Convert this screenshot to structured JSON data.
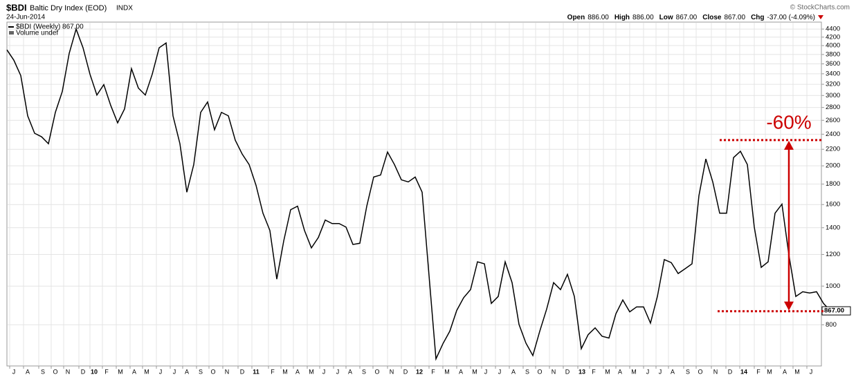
{
  "chart_data": {
    "type": "line",
    "symbol": "$BDI",
    "title": "Baltic Dry Index (EOD)",
    "exchange": "INDX",
    "date": "24-Jun-2014",
    "source": "© StockCharts.com",
    "quote": [
      {
        "label": "Open",
        "value": "886.00"
      },
      {
        "label": "High",
        "value": "886.00"
      },
      {
        "label": "Low",
        "value": "867.00"
      },
      {
        "label": "Close",
        "value": "867.00"
      },
      {
        "label": "Chg",
        "value": "-37.00 (-4.09%)"
      }
    ],
    "legend": [
      "$BDI (Weekly) 867.00",
      "Volume undef"
    ],
    "color": "#000000",
    "log_scale": true,
    "grid": true,
    "values": [
      3903,
      3677,
      3365,
      2668,
      2413,
      2365,
      2272,
      2722,
      3069,
      3825,
      4400,
      3950,
      3392,
      3008,
      3194,
      2833,
      2563,
      2777,
      3501,
      3130,
      3008,
      3392,
      3950,
      4060,
      2668,
      2272,
      1718,
      2015,
      2722,
      2890,
      2462,
      2722,
      2668,
      2318,
      2140,
      2015,
      1787,
      1522,
      1378,
      1041,
      1297,
      1553,
      1585,
      1378,
      1246,
      1323,
      1463,
      1434,
      1434,
      1405,
      1271,
      1280,
      1585,
      1875,
      1897,
      2166,
      2015,
      1845,
      1823,
      1875,
      1718,
      1062,
      657,
      717,
      771,
      869,
      935,
      980,
      1150,
      1137,
      905,
      942,
      1150,
      1020,
      802,
      720,
      670,
      771,
      876,
      1020,
      980,
      1070,
      942,
      697,
      756,
      786,
      749,
      741,
      852,
      923,
      862,
      887,
      887,
      808,
      942,
      1165,
      1145,
      1075,
      1105,
      1137,
      1683,
      2081,
      1823,
      1522,
      1522,
      2097,
      2175,
      2015,
      1405,
      1114,
      1150,
      1522,
      1604,
      1197,
      942,
      968,
      961,
      968,
      905,
      867
    ],
    "last_label": {
      "value": 867,
      "label": "867.00"
    },
    "xlim": [
      0,
      117
    ],
    "ylim": [
      631,
      4580
    ],
    "yticks": [
      800,
      1000,
      1200,
      1400,
      1600,
      1800,
      2000,
      2200,
      2400,
      2600,
      2800,
      3000,
      3200,
      3400,
      3600,
      3800,
      4000,
      4200,
      4400
    ],
    "xticks": [
      {
        "value": 0.4,
        "label": "J"
      },
      {
        "value": 2.4,
        "label": "A"
      },
      {
        "value": 4.6,
        "label": "S"
      },
      {
        "value": 6.4,
        "label": "O"
      },
      {
        "value": 8.2,
        "label": "N"
      },
      {
        "value": 10.4,
        "label": "D"
      },
      {
        "value": 12,
        "label": "10"
      },
      {
        "value": 13.8,
        "label": "F"
      },
      {
        "value": 15.8,
        "label": "M"
      },
      {
        "value": 17.8,
        "label": "A"
      },
      {
        "value": 19.6,
        "label": "M"
      },
      {
        "value": 21.6,
        "label": "J"
      },
      {
        "value": 23.6,
        "label": "J"
      },
      {
        "value": 25.4,
        "label": "A"
      },
      {
        "value": 27.4,
        "label": "S"
      },
      {
        "value": 29.2,
        "label": "O"
      },
      {
        "value": 31.2,
        "label": "N"
      },
      {
        "value": 33.4,
        "label": "D"
      },
      {
        "value": 35.4,
        "label": "11"
      },
      {
        "value": 37.8,
        "label": "F"
      },
      {
        "value": 39.6,
        "label": "M"
      },
      {
        "value": 41.4,
        "label": "A"
      },
      {
        "value": 43.4,
        "label": "M"
      },
      {
        "value": 45.2,
        "label": "J"
      },
      {
        "value": 47.2,
        "label": "J"
      },
      {
        "value": 49,
        "label": "A"
      },
      {
        "value": 51,
        "label": "S"
      },
      {
        "value": 52.9,
        "label": "O"
      },
      {
        "value": 55,
        "label": "N"
      },
      {
        "value": 57,
        "label": "D"
      },
      {
        "value": 59,
        "label": "12"
      },
      {
        "value": 61,
        "label": "F"
      },
      {
        "value": 63,
        "label": "M"
      },
      {
        "value": 65,
        "label": "A"
      },
      {
        "value": 67,
        "label": "M"
      },
      {
        "value": 68.6,
        "label": "J"
      },
      {
        "value": 70.6,
        "label": "J"
      },
      {
        "value": 72.6,
        "label": "A"
      },
      {
        "value": 74.6,
        "label": "S"
      },
      {
        "value": 76.4,
        "label": "O"
      },
      {
        "value": 78.4,
        "label": "N"
      },
      {
        "value": 80.4,
        "label": "D"
      },
      {
        "value": 82.5,
        "label": "13"
      },
      {
        "value": 84.2,
        "label": "F"
      },
      {
        "value": 86.2,
        "label": "M"
      },
      {
        "value": 88,
        "label": "A"
      },
      {
        "value": 90,
        "label": "M"
      },
      {
        "value": 92,
        "label": "J"
      },
      {
        "value": 93.8,
        "label": "J"
      },
      {
        "value": 95.6,
        "label": "A"
      },
      {
        "value": 97.8,
        "label": "S"
      },
      {
        "value": 99.6,
        "label": "O"
      },
      {
        "value": 101.8,
        "label": "N"
      },
      {
        "value": 103.9,
        "label": "D"
      },
      {
        "value": 105.9,
        "label": "14"
      },
      {
        "value": 108,
        "label": "F"
      },
      {
        "value": 109.6,
        "label": "M"
      },
      {
        "value": 111.8,
        "label": "A"
      },
      {
        "value": 113.6,
        "label": "M"
      },
      {
        "value": 115.6,
        "label": "J"
      }
    ],
    "annotation": {
      "text": "-60%",
      "from": 2320,
      "to": 865,
      "x": 113,
      "line_start_top": 103,
      "line_start_bottom": 102.7,
      "line_end": 118,
      "color": "#cc0000"
    }
  }
}
